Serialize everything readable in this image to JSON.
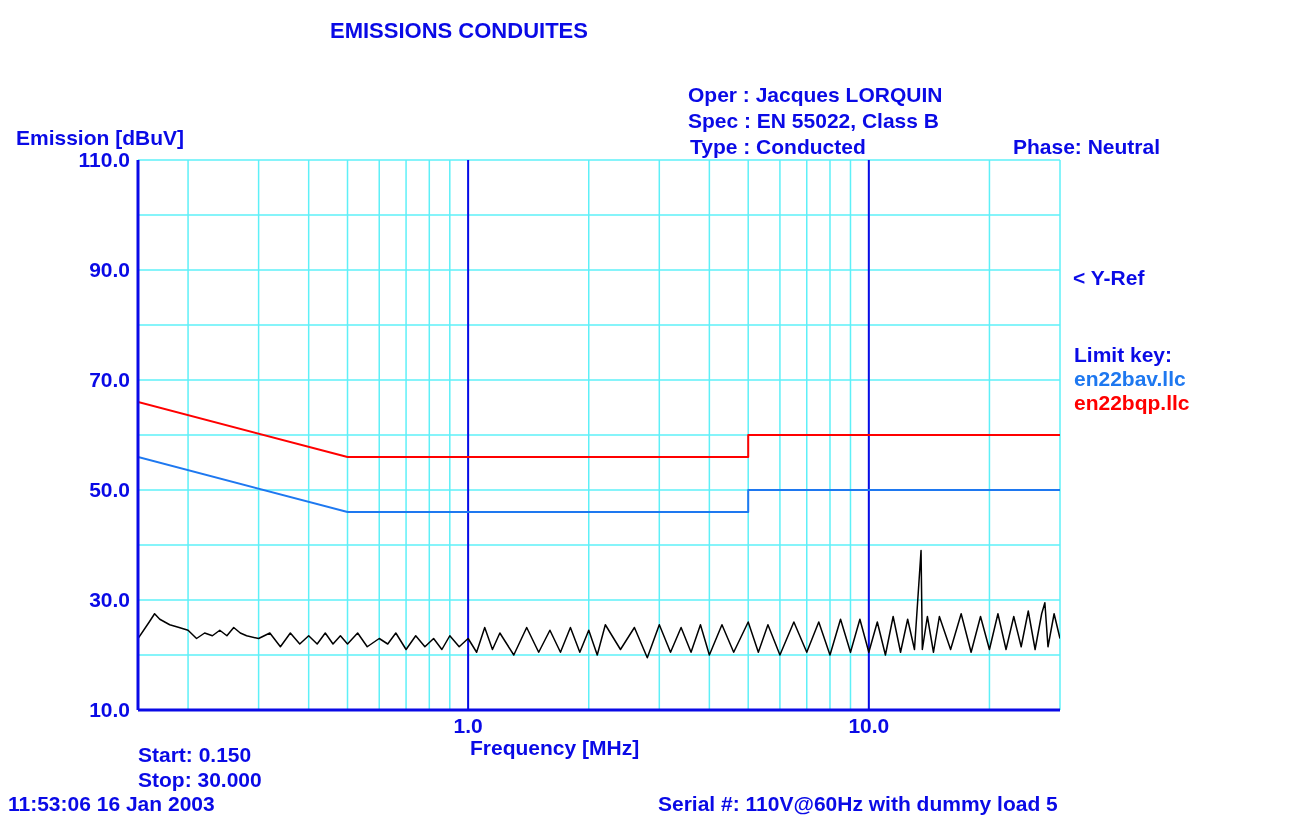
{
  "chart_data": {
    "type": "line",
    "title": "EMISSIONS CONDUITES",
    "xlabel": "Frequency [MHz]",
    "ylabel": "Emission [dBuV]",
    "legend_title": "Limit key:",
    "annotations": [
      "Oper : Jacques LORQUIN",
      "Spec : EN 55022, Class B",
      "Type : Conducted",
      "Phase: Neutral",
      "< Y-Ref",
      "Start: 0.150",
      "Stop: 30.000",
      "11:53:06 16 Jan 2003",
      "Serial #: 110V@60Hz with dummy load 5"
    ],
    "log": "x",
    "grid": true,
    "legend": "right",
    "marker": "none",
    "line_style": "solid",
    "xlim": [
      0.15,
      30
    ],
    "ylim": [
      10,
      110
    ],
    "xticks": [
      {
        "value": 0.2,
        "label": null
      },
      {
        "value": 0.3,
        "label": null
      },
      {
        "value": 0.4,
        "label": null
      },
      {
        "value": 0.5,
        "label": null
      },
      {
        "value": 0.6,
        "label": null
      },
      {
        "value": 0.7,
        "label": null
      },
      {
        "value": 0.8,
        "label": null
      },
      {
        "value": 0.9,
        "label": null
      },
      {
        "value": 1,
        "label": "1.0"
      },
      {
        "value": 2,
        "label": null
      },
      {
        "value": 3,
        "label": null
      },
      {
        "value": 4,
        "label": null
      },
      {
        "value": 5,
        "label": null
      },
      {
        "value": 6,
        "label": null
      },
      {
        "value": 7,
        "label": null
      },
      {
        "value": 8,
        "label": null
      },
      {
        "value": 9,
        "label": null
      },
      {
        "value": 10,
        "label": "10.0"
      },
      {
        "value": 20,
        "label": null
      }
    ],
    "yticks": [
      {
        "value": 10,
        "label": "10.0"
      },
      {
        "value": 20,
        "label": null
      },
      {
        "value": 30,
        "label": "30.0"
      },
      {
        "value": 40,
        "label": null
      },
      {
        "value": 50,
        "label": "50.0"
      },
      {
        "value": 60,
        "label": null
      },
      {
        "value": 70,
        "label": "70.0"
      },
      {
        "value": 80,
        "label": null
      },
      {
        "value": 90,
        "label": "90.0"
      },
      {
        "value": 100,
        "label": null
      },
      {
        "value": 110,
        "label": "110.0"
      }
    ],
    "series": [
      {
        "name": "en22bav.llc",
        "color": "#1e78f0",
        "x": [
          0.15,
          0.5,
          5,
          5,
          30
        ],
        "values": [
          56,
          46,
          46,
          50,
          50
        ]
      },
      {
        "name": "en22bqp.llc",
        "color": "#ff0000",
        "x": [
          0.15,
          0.5,
          5,
          5,
          30
        ],
        "values": [
          66,
          56,
          56,
          60,
          60
        ]
      },
      {
        "color": "#000000",
        "x": [
          0.15,
          0.16,
          0.165,
          0.17,
          0.18,
          0.19,
          0.2,
          0.21,
          0.22,
          0.23,
          0.24,
          0.25,
          0.26,
          0.27,
          0.28,
          0.3,
          0.32,
          0.34,
          0.36,
          0.38,
          0.4,
          0.42,
          0.44,
          0.46,
          0.48,
          0.5,
          0.53,
          0.56,
          0.6,
          0.63,
          0.66,
          0.7,
          0.74,
          0.78,
          0.82,
          0.86,
          0.9,
          0.95,
          1.0,
          1.05,
          1.1,
          1.15,
          1.2,
          1.3,
          1.4,
          1.5,
          1.6,
          1.7,
          1.8,
          1.9,
          2.0,
          2.1,
          2.2,
          2.4,
          2.6,
          2.8,
          3.0,
          3.2,
          3.4,
          3.6,
          3.8,
          4.0,
          4.3,
          4.6,
          5.0,
          5.3,
          5.6,
          6.0,
          6.5,
          7.0,
          7.5,
          8.0,
          8.5,
          9.0,
          9.5,
          10,
          10.5,
          11,
          11.5,
          12,
          12.5,
          13,
          13.5,
          13.6,
          14,
          14.5,
          15,
          16,
          17,
          18,
          19,
          20,
          21,
          22,
          23,
          24,
          25,
          26,
          27,
          27.5,
          28,
          29,
          30
        ],
        "values": [
          23,
          26,
          27.5,
          26.5,
          25.5,
          25,
          24.5,
          23,
          24,
          23.5,
          24.5,
          23.5,
          25,
          24,
          23.5,
          23,
          24,
          21.5,
          24,
          22,
          23.5,
          22,
          24,
          22,
          23.5,
          22,
          24,
          21.5,
          23,
          22,
          24,
          21,
          23.5,
          21.5,
          23,
          21,
          23.5,
          21.5,
          23,
          20.5,
          25,
          21,
          24,
          20,
          25,
          20.5,
          24.5,
          20.5,
          25,
          20.5,
          24.5,
          20,
          25.5,
          21,
          25,
          19.5,
          25.5,
          20.5,
          25,
          20.5,
          25.5,
          20,
          25.5,
          20.5,
          26,
          20.5,
          25.5,
          20,
          26,
          20.5,
          26,
          20,
          26.5,
          20.5,
          26.5,
          20.5,
          26,
          20,
          27,
          20.5,
          26.5,
          21,
          39,
          21,
          27,
          20.5,
          27,
          21,
          27.5,
          20.5,
          27,
          21,
          27.5,
          21,
          27,
          21.5,
          28,
          21,
          27.5,
          29.5,
          21.5,
          27.5,
          23
        ]
      }
    ]
  }
}
